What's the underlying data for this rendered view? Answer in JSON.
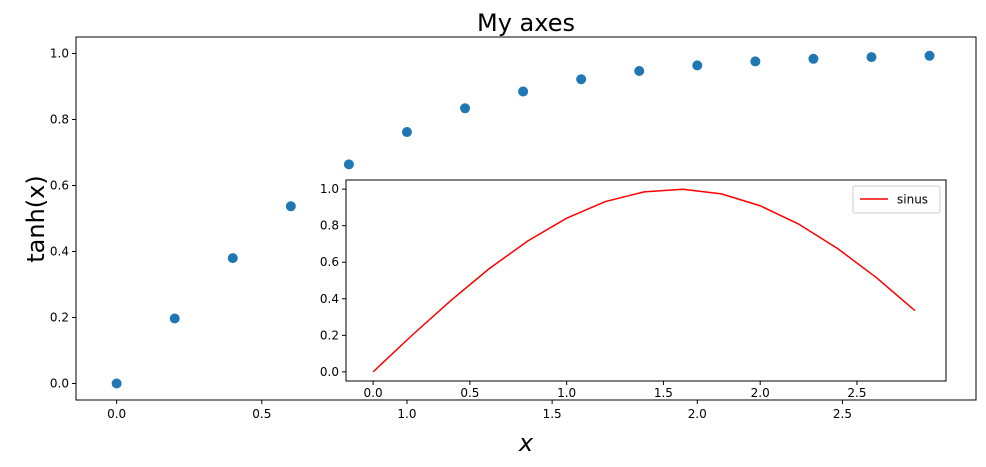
{
  "chart_data": [
    {
      "type": "scatter",
      "title": "My axes",
      "xlabel": "x",
      "ylabel": "tanh(x)",
      "xlim": [
        -0.14,
        2.96
      ],
      "ylim": [
        -0.05,
        1.05
      ],
      "xticks": [
        "0.0",
        "0.5",
        "1.0",
        "1.5",
        "2.0",
        "2.5"
      ],
      "yticks": [
        "0.0",
        "0.2",
        "0.4",
        "0.6",
        "0.8",
        "1.0"
      ],
      "grid": false,
      "series": [
        {
          "color": "#1f77b4",
          "x": [
            0.0,
            0.2,
            0.4,
            0.6,
            0.8,
            1.0,
            1.2,
            1.4,
            1.6,
            1.8,
            2.0,
            2.2,
            2.4,
            2.6,
            2.8
          ],
          "y": [
            0.0,
            0.197,
            0.38,
            0.537,
            0.664,
            0.762,
            0.834,
            0.885,
            0.922,
            0.947,
            0.964,
            0.976,
            0.984,
            0.989,
            0.993
          ]
        }
      ]
    },
    {
      "type": "line",
      "title": "",
      "xlabel": "",
      "ylabel": "",
      "xlim": [
        -0.14,
        2.96
      ],
      "ylim": [
        -0.05,
        1.05
      ],
      "xticks": [
        "0.0",
        "0.5",
        "1.0",
        "1.5",
        "2.0",
        "2.5"
      ],
      "yticks": [
        "0.0",
        "0.2",
        "0.4",
        "0.6",
        "0.8",
        "1.0"
      ],
      "grid": false,
      "legend_position": "top-right",
      "series": [
        {
          "name": "sinus",
          "color": "#ff0000",
          "x": [
            0.0,
            0.2,
            0.4,
            0.6,
            0.8,
            1.0,
            1.2,
            1.4,
            1.6,
            1.8,
            2.0,
            2.2,
            2.4,
            2.6,
            2.8
          ],
          "y": [
            0.0,
            0.199,
            0.389,
            0.565,
            0.717,
            0.841,
            0.932,
            0.985,
            0.9996,
            0.974,
            0.909,
            0.808,
            0.675,
            0.516,
            0.335
          ]
        }
      ]
    }
  ]
}
